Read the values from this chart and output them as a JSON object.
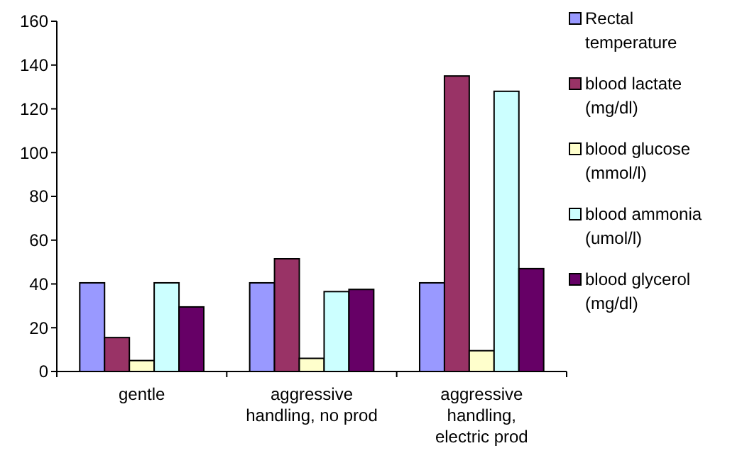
{
  "chart_data": {
    "type": "bar",
    "categories": [
      "gentle",
      "aggressive handling, no prod",
      "aggressive handling, electric prod"
    ],
    "series": [
      {
        "name": "Rectal temperature",
        "color": "#9999ff",
        "values": [
          40.5,
          40.5,
          40.5
        ]
      },
      {
        "name": "blood lactate (mg/dl)",
        "color": "#993366",
        "values": [
          15.5,
          51.5,
          135
        ]
      },
      {
        "name": "blood glucose (mmol/l)",
        "color": "#ffffcc",
        "values": [
          5,
          6,
          9.5
        ]
      },
      {
        "name": "blood ammonia (umol/l)",
        "color": "#ccffff",
        "values": [
          40.5,
          36.5,
          128
        ]
      },
      {
        "name": "blood glycerol (mg/dl)",
        "color": "#660066",
        "values": [
          29.5,
          37.5,
          47
        ]
      }
    ],
    "ylim": [
      0,
      160
    ],
    "yticks": [
      0,
      20,
      40,
      60,
      80,
      100,
      120,
      140,
      160
    ],
    "grid": false,
    "legend": "right"
  }
}
